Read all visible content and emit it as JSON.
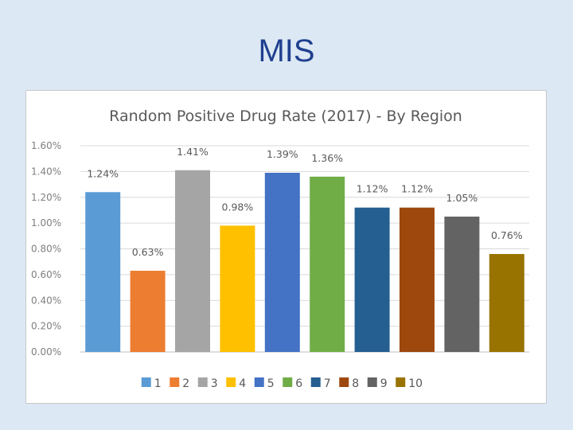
{
  "slide": {
    "title": "MIS"
  },
  "chart_data": {
    "type": "bar",
    "title": "Random Positive Drug Rate (2017) - By Region",
    "xlabel": "",
    "ylabel": "",
    "ylim": [
      0,
      1.6
    ],
    "yticks": [
      "0.00%",
      "0.20%",
      "0.40%",
      "0.60%",
      "0.80%",
      "1.00%",
      "1.20%",
      "1.40%",
      "1.60%"
    ],
    "ytick_values": [
      0,
      0.2,
      0.4,
      0.6,
      0.8,
      1.0,
      1.2,
      1.4,
      1.6
    ],
    "grid": true,
    "legend_position": "bottom",
    "categories": [
      "1",
      "2",
      "3",
      "4",
      "5",
      "6",
      "7",
      "8",
      "9",
      "10"
    ],
    "values": [
      1.24,
      0.63,
      1.41,
      0.98,
      1.39,
      1.36,
      1.12,
      1.12,
      1.05,
      0.76
    ],
    "data_labels": [
      "1.24%",
      "0.63%",
      "1.41%",
      "0.98%",
      "1.39%",
      "1.36%",
      "1.12%",
      "1.12%",
      "1.05%",
      "0.76%"
    ],
    "colors": [
      "#5b9bd5",
      "#ed7d31",
      "#a5a5a5",
      "#ffc000",
      "#4472c4",
      "#70ad47",
      "#255e91",
      "#9e480e",
      "#636363",
      "#997300"
    ]
  }
}
